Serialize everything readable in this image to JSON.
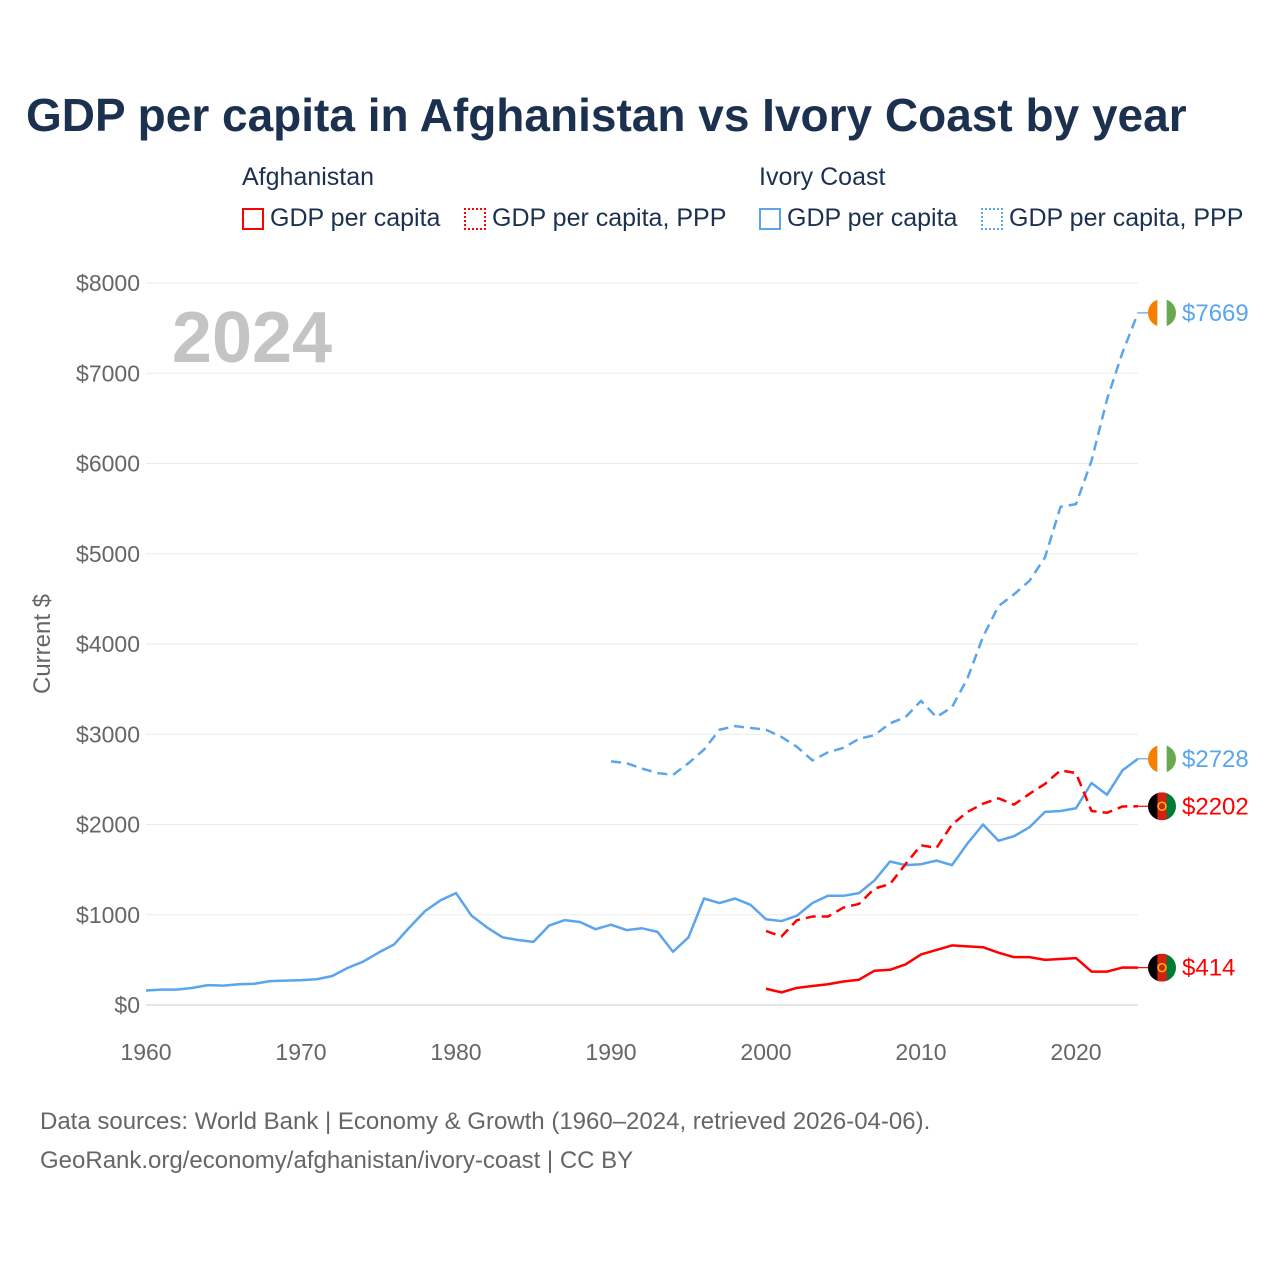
{
  "chart_data": {
    "type": "line",
    "title": "GDP per capita in Afghanistan vs Ivory Coast by year",
    "ylabel": "Current $",
    "xlabel": "",
    "xlim": [
      1960,
      2024
    ],
    "ylim": [
      0,
      8000
    ],
    "x_ticks": [
      "1960",
      "1970",
      "1980",
      "1990",
      "2000",
      "2010",
      "2020"
    ],
    "y_ticks": [
      "$0",
      "$1000",
      "$2000",
      "$3000",
      "$4000",
      "$5000",
      "$6000",
      "$7000",
      "$8000"
    ],
    "year_overlay": "2024",
    "grid": true,
    "legend_position": "top",
    "legend_groups": [
      {
        "name": "Afghanistan",
        "items": [
          "GDP per capita",
          "GDP per capita, PPP"
        ]
      },
      {
        "name": "Ivory Coast",
        "items": [
          "GDP per capita",
          "GDP per capita, PPP"
        ]
      }
    ],
    "series": [
      {
        "name": "Ivory Coast GDP per capita",
        "color": "#5aa5ec",
        "dash": false,
        "start": 1960,
        "end_label": "$2728",
        "values": [
          160,
          170,
          170,
          190,
          220,
          215,
          230,
          235,
          265,
          270,
          275,
          285,
          320,
          410,
          480,
          580,
          670,
          860,
          1040,
          1160,
          1240,
          990,
          860,
          750,
          720,
          700,
          880,
          940,
          920,
          840,
          890,
          830,
          850,
          810,
          590,
          750,
          1180,
          1130,
          1180,
          1110,
          950,
          930,
          990,
          1130,
          1210,
          1210,
          1240,
          1380,
          1590,
          1550,
          1560,
          1600,
          1550,
          1790,
          2000,
          1820,
          1870,
          1970,
          2140,
          2150,
          2180,
          2460,
          2330,
          2600,
          2728
        ]
      },
      {
        "name": "Ivory Coast GDP per capita, PPP",
        "color": "#5aa5ec",
        "dash": true,
        "start": 1990,
        "end_label": "$7669",
        "values": [
          2700,
          2680,
          2620,
          2570,
          2550,
          2680,
          2830,
          3050,
          3090,
          3070,
          3050,
          2970,
          2860,
          2710,
          2800,
          2850,
          2950,
          2990,
          3120,
          3190,
          3370,
          3190,
          3300,
          3620,
          4080,
          4420,
          4550,
          4700,
          4960,
          5520,
          5550,
          6030,
          6710,
          7230,
          7669
        ]
      },
      {
        "name": "Afghanistan GDP per capita",
        "color": "#ff0000",
        "dash": false,
        "start": 2000,
        "end_label": "$414",
        "values": [
          180,
          140,
          190,
          210,
          230,
          260,
          280,
          380,
          390,
          450,
          560,
          610,
          660,
          650,
          640,
          580,
          530,
          530,
          500,
          510,
          520,
          370,
          370,
          415,
          414
        ]
      },
      {
        "name": "Afghanistan GDP per capita, PPP",
        "color": "#ff0000",
        "dash": true,
        "start": 2000,
        "end_label": "$2202",
        "values": [
          820,
          760,
          940,
          980,
          980,
          1080,
          1120,
          1290,
          1340,
          1560,
          1770,
          1740,
          2000,
          2140,
          2230,
          2290,
          2220,
          2340,
          2450,
          2600,
          2570,
          2150,
          2130,
          2200,
          2202
        ]
      }
    ]
  },
  "footer": {
    "line1": "Data sources: World Bank | Economy & Growth (1960–2024, retrieved 2026-04-06).",
    "line2": "GeoRank.org/economy/afghanistan/ivory-coast | CC BY"
  }
}
